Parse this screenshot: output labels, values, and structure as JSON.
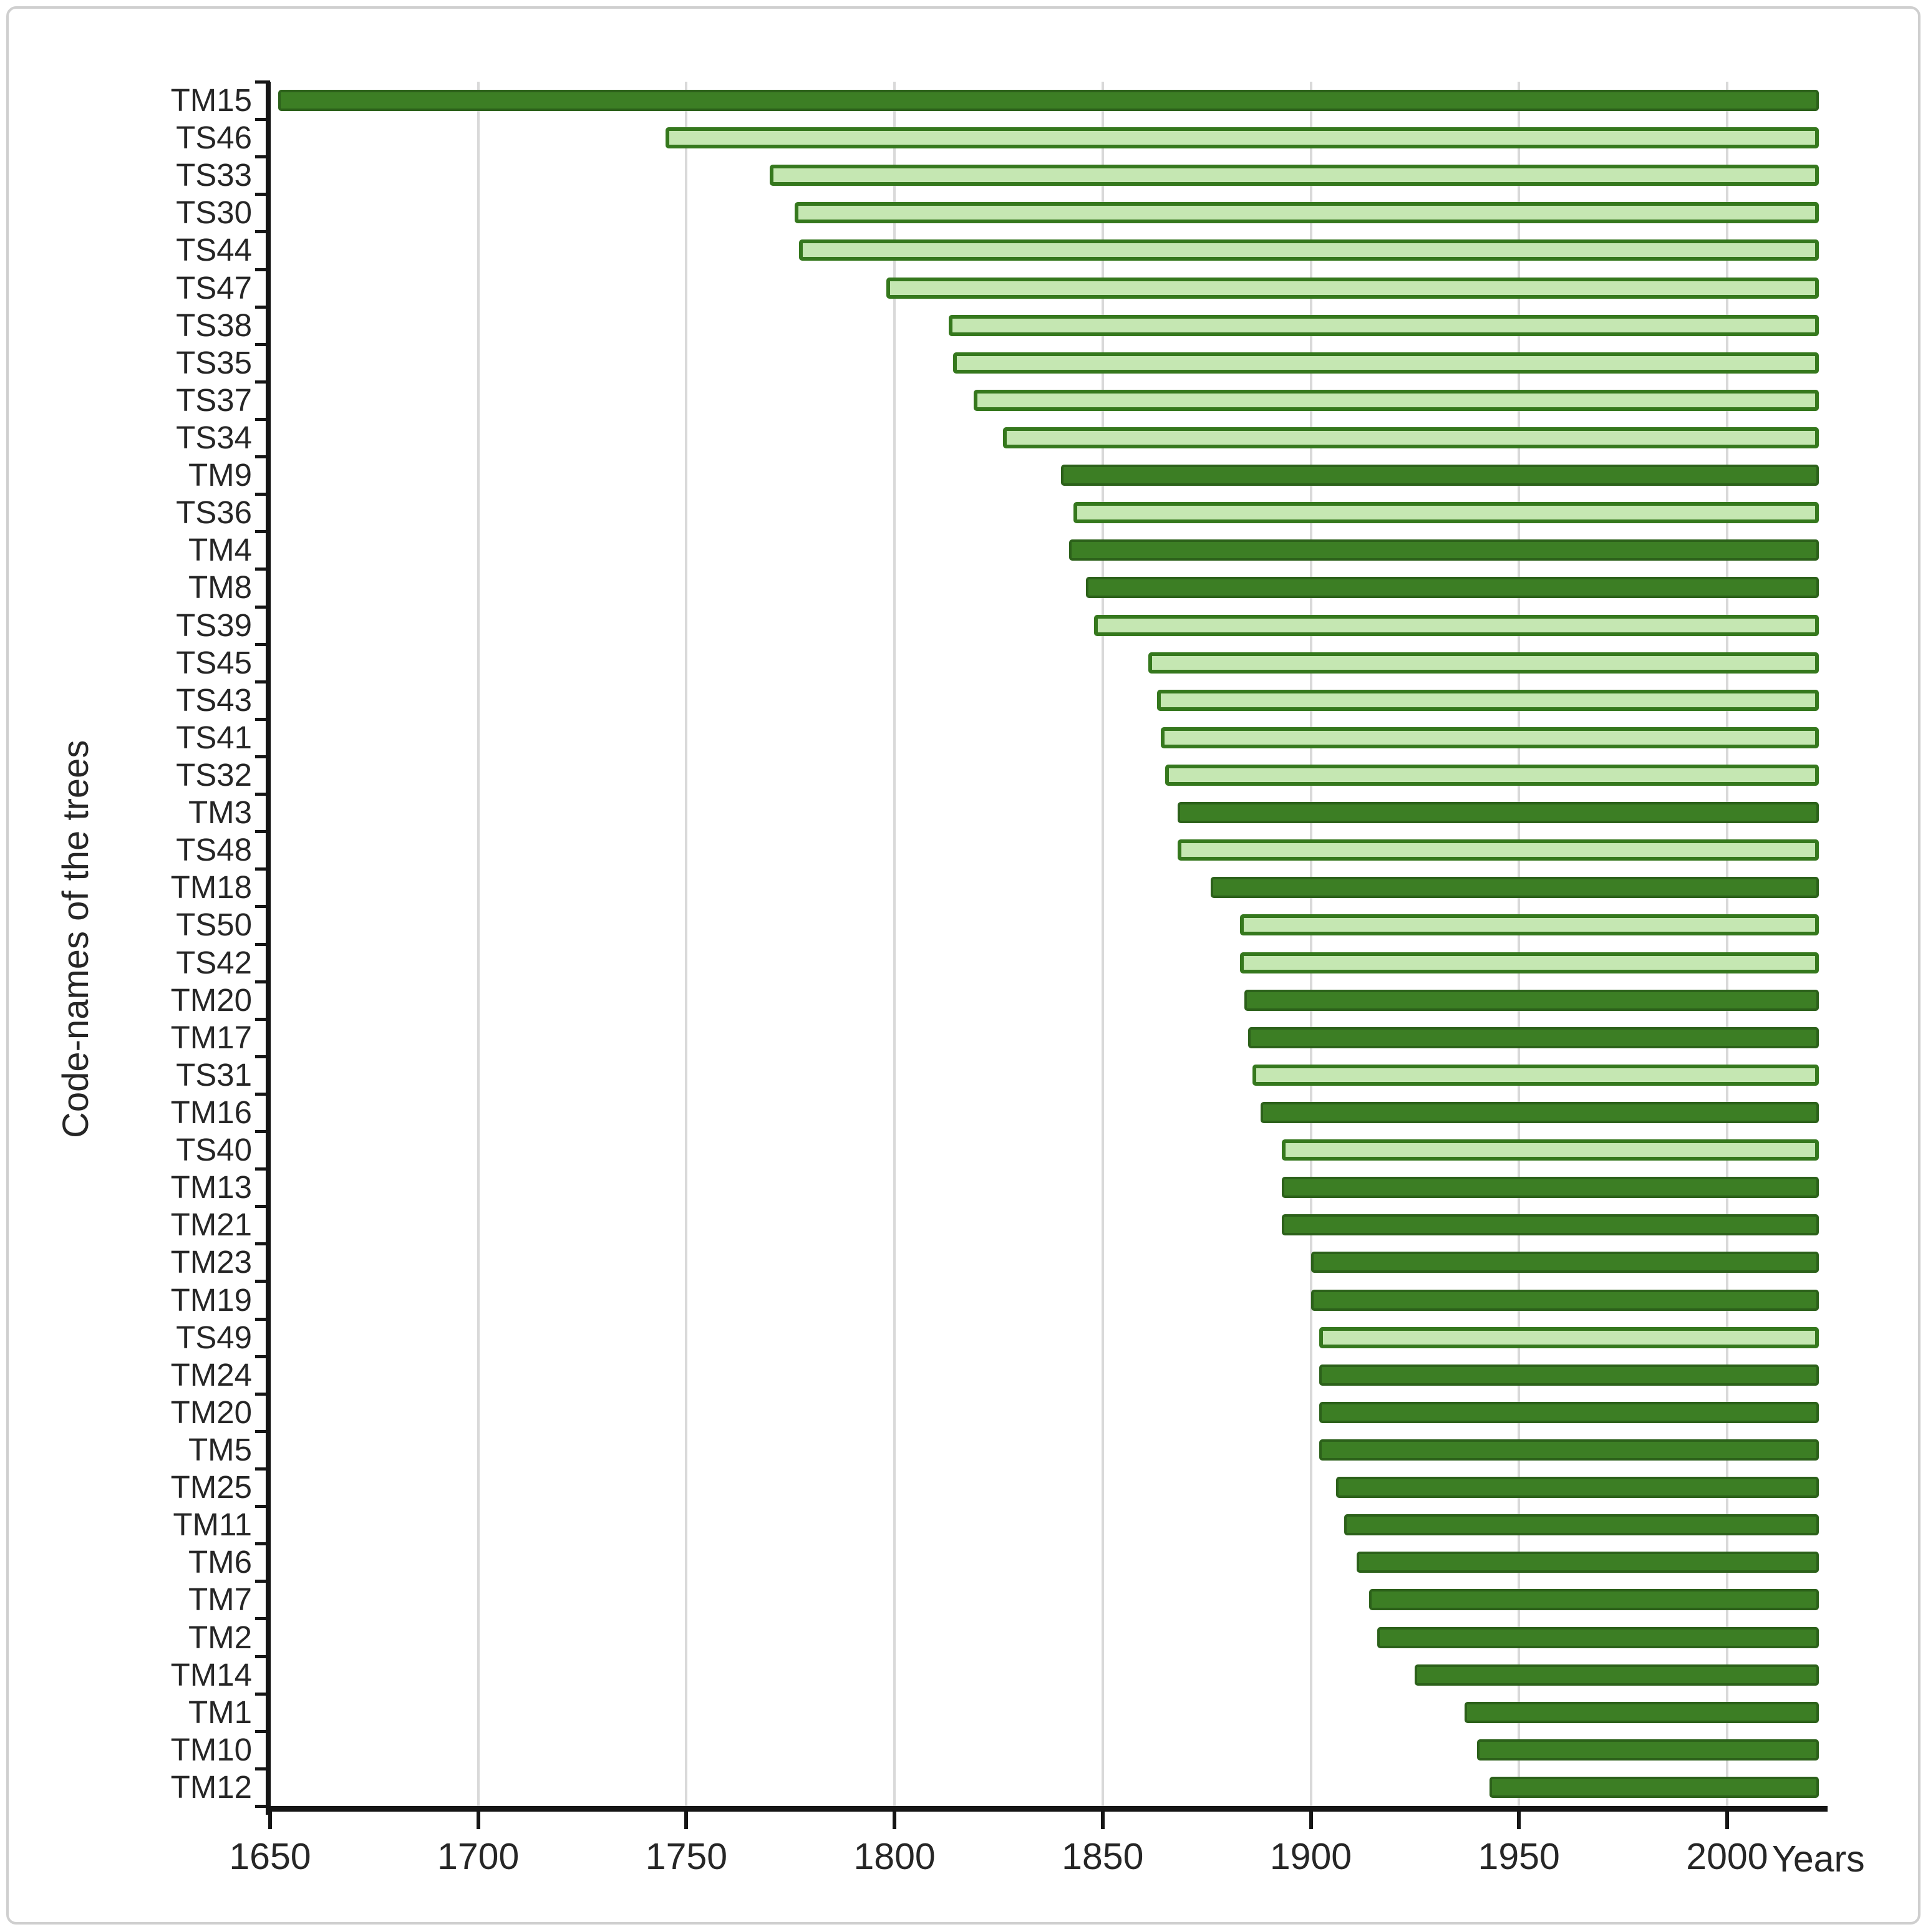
{
  "figure": {
    "background": "#ffffff",
    "border_color": "#cfcfcf"
  },
  "chart_data": {
    "type": "bar",
    "orientation": "horizontal",
    "title": "",
    "xlabel": "Years",
    "ylabel": "Code-names of the trees",
    "x_ticks": [
      1650,
      1700,
      1750,
      1800,
      1850,
      1900,
      1950,
      2000
    ],
    "xlim": [
      1650,
      2022
    ],
    "grid": "vertical-only",
    "legend": "none",
    "bar_end_year": 2022,
    "colors": {
      "dark_fill": "#3c7e24",
      "dark_border": "#2c611a",
      "light_fill": "#c5e7b2",
      "light_border": "#35781d",
      "gridline": "#d9d9d9",
      "axis": "#151515",
      "text": "#262626"
    },
    "bars": [
      {
        "label": "TM15",
        "start": 1652,
        "end": 2022,
        "shade": "dark"
      },
      {
        "label": "TS46",
        "start": 1745,
        "end": 2022,
        "shade": "light"
      },
      {
        "label": "TS33",
        "start": 1770,
        "end": 2022,
        "shade": "light"
      },
      {
        "label": "TS30",
        "start": 1776,
        "end": 2022,
        "shade": "light"
      },
      {
        "label": "TS44",
        "start": 1777,
        "end": 2022,
        "shade": "light"
      },
      {
        "label": "TS47",
        "start": 1798,
        "end": 2022,
        "shade": "light"
      },
      {
        "label": "TS38",
        "start": 1813,
        "end": 2022,
        "shade": "light"
      },
      {
        "label": "TS35",
        "start": 1814,
        "end": 2022,
        "shade": "light"
      },
      {
        "label": "TS37",
        "start": 1819,
        "end": 2022,
        "shade": "light"
      },
      {
        "label": "TS34",
        "start": 1826,
        "end": 2022,
        "shade": "light"
      },
      {
        "label": "TM9",
        "start": 1840,
        "end": 2022,
        "shade": "dark"
      },
      {
        "label": "TS36",
        "start": 1843,
        "end": 2022,
        "shade": "light"
      },
      {
        "label": "TM4",
        "start": 1842,
        "end": 2022,
        "shade": "dark"
      },
      {
        "label": "TM8",
        "start": 1846,
        "end": 2022,
        "shade": "dark"
      },
      {
        "label": "TS39",
        "start": 1848,
        "end": 2022,
        "shade": "light"
      },
      {
        "label": "TS45",
        "start": 1861,
        "end": 2022,
        "shade": "light"
      },
      {
        "label": "TS43",
        "start": 1863,
        "end": 2022,
        "shade": "light"
      },
      {
        "label": "TS41",
        "start": 1864,
        "end": 2022,
        "shade": "light"
      },
      {
        "label": "TS32",
        "start": 1865,
        "end": 2022,
        "shade": "light"
      },
      {
        "label": "TM3",
        "start": 1868,
        "end": 2022,
        "shade": "dark"
      },
      {
        "label": "TS48",
        "start": 1868,
        "end": 2022,
        "shade": "light"
      },
      {
        "label": "TM18",
        "start": 1876,
        "end": 2022,
        "shade": "dark"
      },
      {
        "label": "TS50",
        "start": 1883,
        "end": 2022,
        "shade": "light"
      },
      {
        "label": "TS42",
        "start": 1883,
        "end": 2022,
        "shade": "light"
      },
      {
        "label": "TM20",
        "start": 1884,
        "end": 2022,
        "shade": "dark"
      },
      {
        "label": "TM17",
        "start": 1885,
        "end": 2022,
        "shade": "dark"
      },
      {
        "label": "TS31",
        "start": 1886,
        "end": 2022,
        "shade": "light"
      },
      {
        "label": "TM16",
        "start": 1888,
        "end": 2022,
        "shade": "dark"
      },
      {
        "label": "TS40",
        "start": 1893,
        "end": 2022,
        "shade": "light"
      },
      {
        "label": "TM13",
        "start": 1893,
        "end": 2022,
        "shade": "dark"
      },
      {
        "label": "TM21",
        "start": 1893,
        "end": 2022,
        "shade": "dark"
      },
      {
        "label": "TM23",
        "start": 1900,
        "end": 2022,
        "shade": "dark"
      },
      {
        "label": "TM19",
        "start": 1900,
        "end": 2022,
        "shade": "dark"
      },
      {
        "label": "TS49",
        "start": 1902,
        "end": 2022,
        "shade": "light"
      },
      {
        "label": "TM24",
        "start": 1902,
        "end": 2022,
        "shade": "dark"
      },
      {
        "label": "TM20",
        "start": 1902,
        "end": 2022,
        "shade": "dark"
      },
      {
        "label": "TM5",
        "start": 1902,
        "end": 2022,
        "shade": "dark"
      },
      {
        "label": "TM25",
        "start": 1906,
        "end": 2022,
        "shade": "dark"
      },
      {
        "label": "TM11",
        "start": 1908,
        "end": 2022,
        "shade": "dark"
      },
      {
        "label": "TM6",
        "start": 1911,
        "end": 2022,
        "shade": "dark"
      },
      {
        "label": "TM7",
        "start": 1914,
        "end": 2022,
        "shade": "dark"
      },
      {
        "label": "TM2",
        "start": 1916,
        "end": 2022,
        "shade": "dark"
      },
      {
        "label": "TM14",
        "start": 1925,
        "end": 2022,
        "shade": "dark"
      },
      {
        "label": "TM1",
        "start": 1937,
        "end": 2022,
        "shade": "dark"
      },
      {
        "label": "TM10",
        "start": 1940,
        "end": 2022,
        "shade": "dark"
      },
      {
        "label": "TM12",
        "start": 1943,
        "end": 2022,
        "shade": "dark"
      }
    ]
  }
}
